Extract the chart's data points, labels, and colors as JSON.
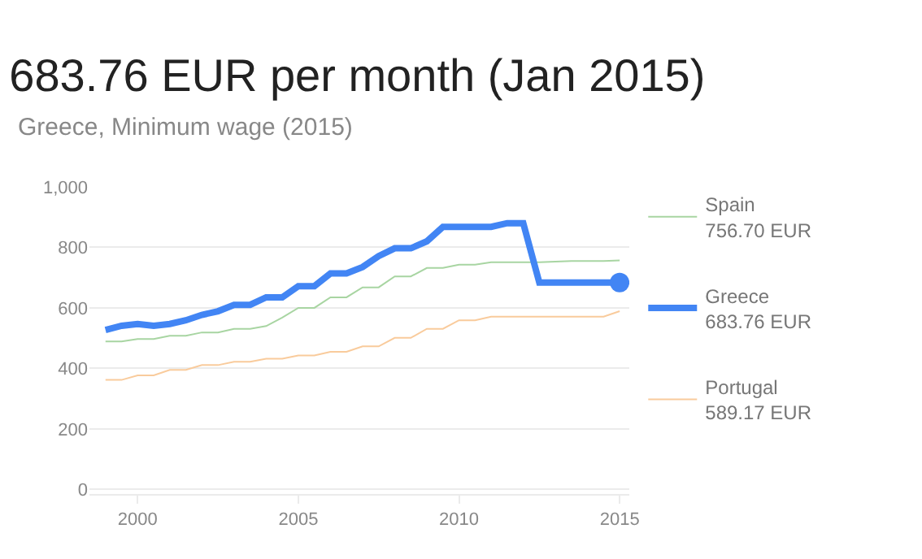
{
  "chart_data": {
    "type": "line",
    "title": "683.76 EUR per month (Jan 2015)",
    "subtitle": "Greece, Minimum wage (2015)",
    "x": [
      1999,
      1999.5,
      2000,
      2000.5,
      2001,
      2001.5,
      2002,
      2002.5,
      2003,
      2003.5,
      2004,
      2004.5,
      2005,
      2005.5,
      2006,
      2006.5,
      2007,
      2007.5,
      2008,
      2008.5,
      2009,
      2009.5,
      2010,
      2010.5,
      2011,
      2011.5,
      2012,
      2012.5,
      2013,
      2013.5,
      2014,
      2014.5,
      2015
    ],
    "series": [
      {
        "name": "Spain",
        "color": "#a8d5a2",
        "values": [
          489,
          489,
          497,
          497,
          508,
          508,
          519,
          519,
          531,
          531,
          540,
          568,
          600,
          600,
          635,
          635,
          668,
          668,
          704,
          704,
          732,
          732,
          743,
          743,
          751,
          751,
          751,
          751,
          753,
          755,
          755,
          755,
          757
        ]
      },
      {
        "name": "Greece",
        "color": "#4285f4",
        "values": [
          527,
          541,
          547,
          541,
          547,
          559,
          577,
          589,
          610,
          610,
          635,
          635,
          672,
          672,
          714,
          714,
          735,
          771,
          797,
          797,
          820,
          868,
          868,
          868,
          868,
          880,
          880,
          684,
          684,
          684,
          684,
          684,
          684
        ]
      },
      {
        "name": "Portugal",
        "color": "#f9cb9c",
        "values": [
          362,
          362,
          377,
          377,
          395,
          395,
          411,
          411,
          422,
          422,
          432,
          432,
          443,
          443,
          455,
          455,
          473,
          473,
          501,
          501,
          531,
          531,
          559,
          559,
          571,
          571,
          571,
          571,
          571,
          571,
          571,
          571,
          589
        ]
      },
      {
        "type": "scatter",
        "color": "#4285f4",
        "marker": "circle",
        "x": [
          2015
        ],
        "values": [
          684
        ]
      }
    ],
    "annotations": [
      "756.70 EUR",
      "683.76 EUR",
      "589.17 EUR"
    ],
    "xlim": [
      1998.5,
      2015.3
    ],
    "xticks": [
      2000,
      2005,
      2010,
      2015
    ],
    "ylim": [
      -15,
      1000
    ],
    "yticks": [
      0,
      200,
      400,
      600,
      800,
      {
        "value": 1000,
        "label": "1,000"
      }
    ],
    "grid": "y",
    "legend": "right",
    "marker": "none",
    "line_style": "solid"
  }
}
